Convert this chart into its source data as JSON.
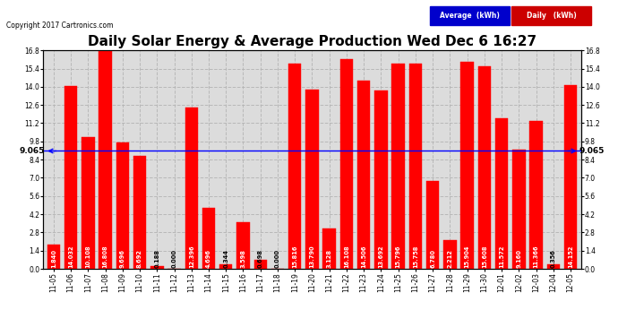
{
  "title": "Daily Solar Energy & Average Production Wed Dec 6 16:27",
  "copyright": "Copyright 2017 Cartronics.com",
  "categories": [
    "11-05",
    "11-06",
    "11-07",
    "11-08",
    "11-09",
    "11-10",
    "11-11",
    "11-12",
    "11-13",
    "11-14",
    "11-15",
    "11-16",
    "11-17",
    "11-18",
    "11-19",
    "11-20",
    "11-21",
    "11-22",
    "11-23",
    "11-24",
    "11-25",
    "11-26",
    "11-27",
    "11-28",
    "11-29",
    "11-30",
    "12-01",
    "12-02",
    "12-03",
    "12-04",
    "12-05"
  ],
  "values": [
    1.84,
    14.032,
    10.108,
    16.808,
    9.696,
    8.692,
    0.188,
    0.0,
    12.396,
    4.696,
    0.344,
    3.598,
    0.698,
    0.0,
    15.816,
    13.79,
    3.128,
    16.108,
    14.506,
    13.692,
    15.796,
    15.758,
    6.78,
    2.212,
    15.904,
    15.608,
    11.572,
    9.16,
    11.366,
    0.356,
    14.152
  ],
  "average": 9.065,
  "bar_color": "#ff0000",
  "avg_line_color": "#0000ff",
  "background_color": "#ffffff",
  "plot_bg_color": "#dcdcdc",
  "grid_color": "#b0b0b0",
  "ylim": [
    0.0,
    16.8
  ],
  "yticks": [
    0.0,
    1.4,
    2.8,
    4.2,
    5.6,
    7.0,
    8.4,
    9.8,
    11.2,
    12.6,
    14.0,
    15.4,
    16.8
  ],
  "avg_label": "9.065",
  "legend_avg_bg": "#0000cc",
  "legend_daily_bg": "#cc0000",
  "title_fontsize": 11,
  "tick_fontsize": 5.5,
  "value_fontsize": 4.8,
  "avg_label_fontsize": 6.5,
  "copyright_fontsize": 5.5
}
